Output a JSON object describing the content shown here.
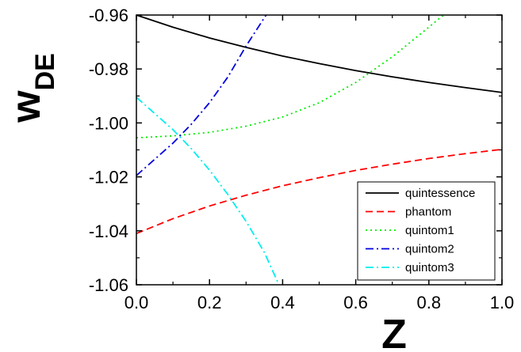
{
  "chart_data": {
    "type": "line",
    "xlabel": "Z",
    "ylabel_main": "w",
    "ylabel_sub": "DE",
    "xlim": [
      0.0,
      1.0
    ],
    "ylim": [
      -1.06,
      -0.96
    ],
    "xticks": [
      0.0,
      0.2,
      0.4,
      0.6,
      0.8,
      1.0
    ],
    "xtick_labels": [
      "0.0",
      "0.2",
      "0.4",
      "0.6",
      "0.8",
      "1.0"
    ],
    "yticks": [
      -0.96,
      -0.98,
      -1.0,
      -1.02,
      -1.04,
      -1.06
    ],
    "ytick_labels": [
      "-0.96",
      "-0.98",
      "-1.00",
      "-1.02",
      "-1.04",
      "-1.06"
    ],
    "legend_position": "bottom-right",
    "series": [
      {
        "name": "quintessence",
        "color": "#000000",
        "dash": "solid",
        "x": [
          0.0,
          0.1,
          0.2,
          0.3,
          0.4,
          0.5,
          0.6,
          0.7,
          0.8,
          0.9,
          1.0
        ],
        "y": [
          -0.96,
          -0.9645,
          -0.9685,
          -0.972,
          -0.9752,
          -0.978,
          -0.9806,
          -0.9829,
          -0.985,
          -0.9869,
          -0.9887
        ]
      },
      {
        "name": "phantom",
        "color": "#ff0000",
        "dash": "dash",
        "x": [
          0.0,
          0.1,
          0.2,
          0.3,
          0.4,
          0.5,
          0.6,
          0.7,
          0.8,
          0.9,
          1.0
        ],
        "y": [
          -1.041,
          -1.0355,
          -1.0308,
          -1.0268,
          -1.0233,
          -1.0203,
          -1.0176,
          -1.0153,
          -1.0132,
          -1.0114,
          -1.0098
        ]
      },
      {
        "name": "quintom1",
        "color": "#00ee00",
        "dash": "dot",
        "x": [
          0.0,
          0.1,
          0.2,
          0.3,
          0.4,
          0.5,
          0.6,
          0.7,
          0.8,
          0.84
        ],
        "y": [
          -1.0055,
          -1.0048,
          -1.0035,
          -1.0012,
          -0.9978,
          -0.9925,
          -0.985,
          -0.9755,
          -0.9645,
          -0.96
        ]
      },
      {
        "name": "quintom2",
        "color": "#0000dd",
        "dash": "dashdot",
        "x": [
          0.0,
          0.05,
          0.1,
          0.15,
          0.2,
          0.25,
          0.3,
          0.35,
          0.355
        ],
        "y": [
          -1.0195,
          -1.0135,
          -1.0075,
          -1.0005,
          -0.9925,
          -0.983,
          -0.9715,
          -0.961,
          -0.96
        ]
      },
      {
        "name": "quintom3",
        "color": "#00eeee",
        "dash": "dashdot",
        "x": [
          0.0,
          0.05,
          0.1,
          0.15,
          0.2,
          0.25,
          0.3,
          0.35,
          0.39
        ],
        "y": [
          -0.9905,
          -0.9965,
          -1.0025,
          -1.0095,
          -1.0175,
          -1.0265,
          -1.0365,
          -1.048,
          -1.06
        ]
      }
    ]
  }
}
